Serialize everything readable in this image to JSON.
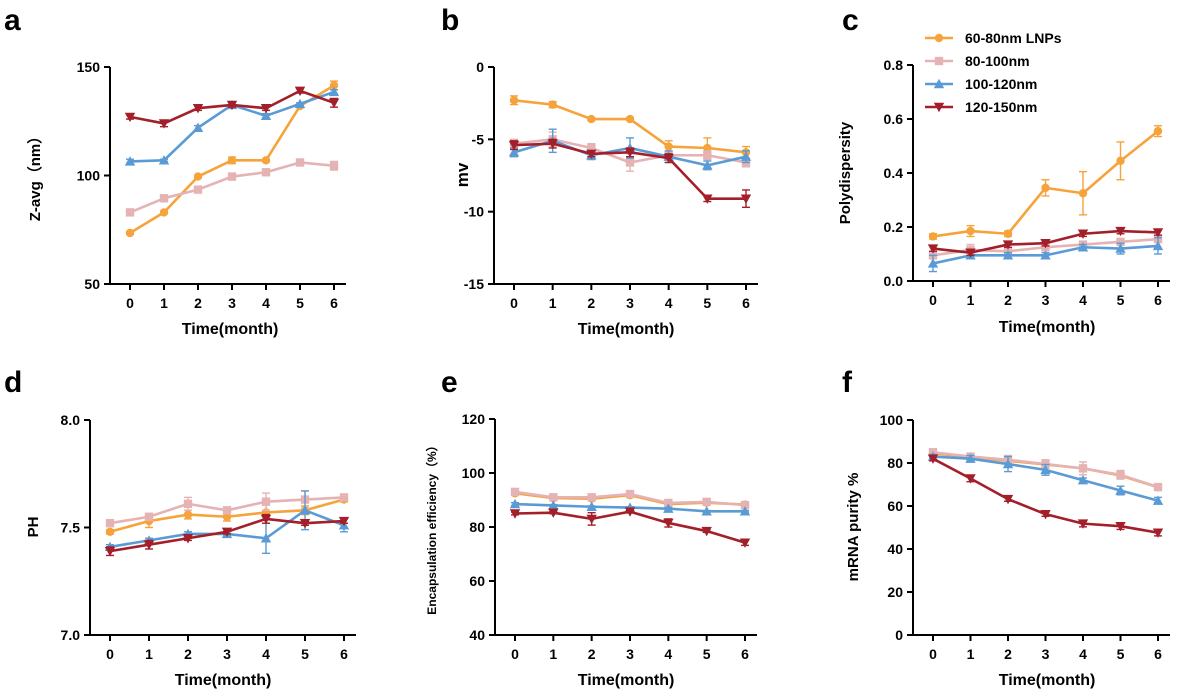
{
  "figure": {
    "colors": {
      "orange": "#F5A33A",
      "pink": "#E5B3B3",
      "blue": "#5B9BD5",
      "red": "#A31F2A"
    },
    "legend": [
      {
        "name": "60-80nm LNPs",
        "color": "#F5A33A",
        "marker": "circle"
      },
      {
        "name": "80-100nm",
        "color": "#E5B3B3",
        "marker": "square"
      },
      {
        "name": "100-120nm",
        "color": "#5B9BD5",
        "marker": "triangle-up"
      },
      {
        "name": "120-150nm",
        "color": "#A31F2A",
        "marker": "triangle-down"
      }
    ]
  },
  "chart_data": [
    {
      "id": "a",
      "panel_label": "a",
      "type": "line",
      "xlabel": "Time(month)",
      "ylabel": "Z-avg（nm）",
      "x": [
        0,
        1,
        2,
        3,
        4,
        5,
        6
      ],
      "xticks": [
        "0",
        "1",
        "2",
        "3",
        "4",
        "5",
        "6"
      ],
      "ylim": [
        50,
        150
      ],
      "yticks": [
        50,
        100,
        150
      ],
      "yticklabels": [
        "50",
        "100",
        "150"
      ],
      "series": [
        {
          "name": "60-80nm LNPs",
          "values": [
            73.5,
            83,
            99.5,
            107,
            107,
            132,
            141.5
          ],
          "errors": [
            0.5,
            0.5,
            0.5,
            1.5,
            0.5,
            0.5,
            2
          ]
        },
        {
          "name": "80-100nm",
          "values": [
            83,
            89.5,
            93.5,
            99.5,
            101.5,
            106,
            104.5
          ],
          "errors": [
            0.5,
            1,
            1,
            0.5,
            1,
            0.5,
            2
          ]
        },
        {
          "name": "100-120nm",
          "values": [
            106.5,
            107,
            122,
            132.5,
            127.5,
            133,
            138.5
          ],
          "errors": [
            1,
            0.5,
            1,
            1,
            1,
            0.5,
            1
          ]
        },
        {
          "name": "120-150nm",
          "values": [
            127,
            124,
            131,
            132.5,
            131,
            139,
            133.5
          ],
          "errors": [
            1,
            1.5,
            1,
            1,
            1,
            1,
            2
          ]
        }
      ]
    },
    {
      "id": "b",
      "panel_label": "b",
      "type": "line",
      "xlabel": "Time(month)",
      "ylabel": "mv",
      "x": [
        0,
        1,
        2,
        3,
        4,
        5,
        6
      ],
      "xticks": [
        "0",
        "1",
        "2",
        "3",
        "4",
        "5",
        "6"
      ],
      "ylim": [
        -15,
        0
      ],
      "yticks": [
        -15,
        -10,
        -5,
        0
      ],
      "yticklabels": [
        "-15",
        "-10",
        "-5",
        "0"
      ],
      "series": [
        {
          "name": "60-80nm LNPs",
          "values": [
            -2.3,
            -2.6,
            -3.6,
            -3.6,
            -5.5,
            -5.6,
            -5.9
          ],
          "errors": [
            0.3,
            0.2,
            0.1,
            0.1,
            0.4,
            0.7,
            0.4
          ]
        },
        {
          "name": "80-100nm",
          "values": [
            -5.3,
            -5.0,
            -5.6,
            -6.6,
            -6.1,
            -6.1,
            -6.6
          ],
          "errors": [
            0.3,
            0.5,
            0.3,
            0.6,
            0.2,
            0.3,
            0.3
          ]
        },
        {
          "name": "100-120nm",
          "values": [
            -5.9,
            -5.1,
            -6.1,
            -5.6,
            -6.2,
            -6.8,
            -6.2
          ],
          "errors": [
            0.3,
            0.8,
            0.3,
            0.7,
            0.4,
            0.3,
            0.4
          ]
        },
        {
          "name": "120-150nm",
          "values": [
            -5.4,
            -5.3,
            -6.0,
            -5.9,
            -6.3,
            -9.1,
            -9.1
          ],
          "errors": [
            0.3,
            0.3,
            0.2,
            0.3,
            0.3,
            0.2,
            0.6
          ]
        }
      ]
    },
    {
      "id": "c",
      "panel_label": "c",
      "type": "line",
      "xlabel": "Time(month)",
      "ylabel": "Polydispersity",
      "x": [
        0,
        1,
        2,
        3,
        4,
        5,
        6
      ],
      "xticks": [
        "0",
        "1",
        "2",
        "3",
        "4",
        "5",
        "6"
      ],
      "ylim": [
        0,
        0.8
      ],
      "yticks": [
        0,
        0.2,
        0.4,
        0.6,
        0.8
      ],
      "yticklabels": [
        "0.0",
        "0.2",
        "0.4",
        "0.6",
        "0.8"
      ],
      "legend_position": "top-right",
      "series": [
        {
          "name": "60-80nm LNPs",
          "values": [
            0.165,
            0.185,
            0.175,
            0.345,
            0.325,
            0.445,
            0.555
          ],
          "errors": [
            0.01,
            0.02,
            0.01,
            0.03,
            0.08,
            0.07,
            0.02
          ]
        },
        {
          "name": "80-100nm",
          "values": [
            0.095,
            0.115,
            0.11,
            0.125,
            0.135,
            0.145,
            0.155
          ],
          "errors": [
            0.01,
            0.02,
            0.01,
            0.01,
            0.01,
            0.01,
            0.01
          ]
        },
        {
          "name": "100-120nm",
          "values": [
            0.065,
            0.095,
            0.095,
            0.095,
            0.125,
            0.12,
            0.13
          ],
          "errors": [
            0.03,
            0.01,
            0.01,
            0.01,
            0.01,
            0.02,
            0.03
          ]
        },
        {
          "name": "120-150nm",
          "values": [
            0.12,
            0.105,
            0.135,
            0.14,
            0.175,
            0.185,
            0.18
          ],
          "errors": [
            0.01,
            0.01,
            0.01,
            0.01,
            0.01,
            0.01,
            0.01
          ]
        }
      ]
    },
    {
      "id": "d",
      "panel_label": "d",
      "type": "line",
      "xlabel": "Time(month)",
      "ylabel": "PH",
      "x": [
        0,
        1,
        2,
        3,
        4,
        5,
        6
      ],
      "xticks": [
        "0",
        "1",
        "2",
        "3",
        "4",
        "5",
        "6"
      ],
      "ylim": [
        7.0,
        8.0
      ],
      "yticks": [
        7.0,
        7.5,
        8.0
      ],
      "yticklabels": [
        "7.0",
        "7.5",
        "8.0"
      ],
      "series": [
        {
          "name": "60-80nm LNPs",
          "values": [
            7.48,
            7.53,
            7.56,
            7.55,
            7.57,
            7.58,
            7.63
          ],
          "errors": [
            0.01,
            0.03,
            0.02,
            0.02,
            0.05,
            0.02,
            0.01
          ]
        },
        {
          "name": "80-100nm",
          "values": [
            7.52,
            7.55,
            7.61,
            7.58,
            7.62,
            7.63,
            7.64
          ],
          "errors": [
            0.01,
            0.01,
            0.03,
            0.01,
            0.04,
            0.04,
            0.01
          ]
        },
        {
          "name": "100-120nm",
          "values": [
            7.41,
            7.44,
            7.47,
            7.47,
            7.45,
            7.58,
            7.51
          ],
          "errors": [
            0.01,
            0.01,
            0.01,
            0.01,
            0.07,
            0.09,
            0.03
          ]
        },
        {
          "name": "120-150nm",
          "values": [
            7.39,
            7.42,
            7.45,
            7.48,
            7.54,
            7.52,
            7.53
          ],
          "errors": [
            0.02,
            0.02,
            0.01,
            0.01,
            0.02,
            0.01,
            0.01
          ]
        }
      ]
    },
    {
      "id": "e",
      "panel_label": "e",
      "type": "line",
      "xlabel": "Time(month)",
      "ylabel": "Encapsulation efficiency（%）",
      "x": [
        0,
        1,
        2,
        3,
        4,
        5,
        6
      ],
      "xticks": [
        "0",
        "1",
        "2",
        "3",
        "4",
        "5",
        "6"
      ],
      "ylim": [
        40,
        120
      ],
      "yticks": [
        40,
        60,
        80,
        100,
        120
      ],
      "yticklabels": [
        "40",
        "60",
        "80",
        "100",
        "120"
      ],
      "series": [
        {
          "name": "60-80nm LNPs",
          "values": [
            92.5,
            90.7,
            90.5,
            91.8,
            88.5,
            89,
            88.3
          ],
          "errors": [
            0.5,
            0.3,
            0.4,
            0.3,
            0.4,
            0.3,
            0.3
          ]
        },
        {
          "name": "80-100nm",
          "values": [
            93,
            91,
            91,
            92.2,
            88.9,
            89.3,
            88.1
          ],
          "errors": [
            0.5,
            0.3,
            0.5,
            0.4,
            0.3,
            0.5,
            0.3
          ]
        },
        {
          "name": "100-120nm",
          "values": [
            88.5,
            88,
            87.5,
            87.2,
            86.8,
            85.8,
            85.8
          ],
          "errors": [
            0.5,
            0.3,
            0.3,
            0.3,
            0.4,
            0.3,
            0.3
          ]
        },
        {
          "name": "120-150nm",
          "values": [
            85,
            85.3,
            83,
            85.7,
            81.5,
            78.5,
            74.2
          ],
          "errors": [
            0.5,
            0.4,
            2.3,
            0.5,
            1.5,
            0.5,
            1
          ]
        }
      ]
    },
    {
      "id": "f",
      "panel_label": "f",
      "type": "line",
      "xlabel": "Time(month)",
      "ylabel": "mRNA purity %",
      "x": [
        0,
        1,
        2,
        3,
        4,
        5,
        6
      ],
      "xticks": [
        "0",
        "1",
        "2",
        "3",
        "4",
        "5",
        "6"
      ],
      "ylim": [
        0,
        100
      ],
      "yticks": [
        0,
        20,
        40,
        60,
        80,
        100
      ],
      "yticklabels": [
        "0",
        "20",
        "40",
        "60",
        "80",
        "100"
      ],
      "series": [
        {
          "name": "60-80nm LNPs",
          "values": [
            84.5,
            82.8,
            81,
            79.3,
            77.5,
            74.2,
            68.7
          ],
          "errors": [
            1,
            1,
            1,
            1,
            1,
            1,
            1
          ]
        },
        {
          "name": "80-100nm",
          "values": [
            85,
            83,
            81.5,
            79.5,
            77.5,
            74.5,
            68.8
          ],
          "errors": [
            1,
            1,
            2,
            2,
            3,
            2,
            1.5
          ]
        },
        {
          "name": "100-120nm",
          "values": [
            83,
            82,
            79.5,
            76.8,
            72,
            67.2,
            62.5
          ],
          "errors": [
            1,
            1.5,
            3.5,
            2.5,
            1,
            2,
            1.5
          ]
        },
        {
          "name": "120-150nm",
          "values": [
            82,
            72.8,
            63.2,
            56.2,
            51.8,
            50.6,
            47.6
          ],
          "errors": [
            1,
            1.5,
            1,
            1,
            1.5,
            1.5,
            1.5
          ]
        }
      ]
    }
  ]
}
